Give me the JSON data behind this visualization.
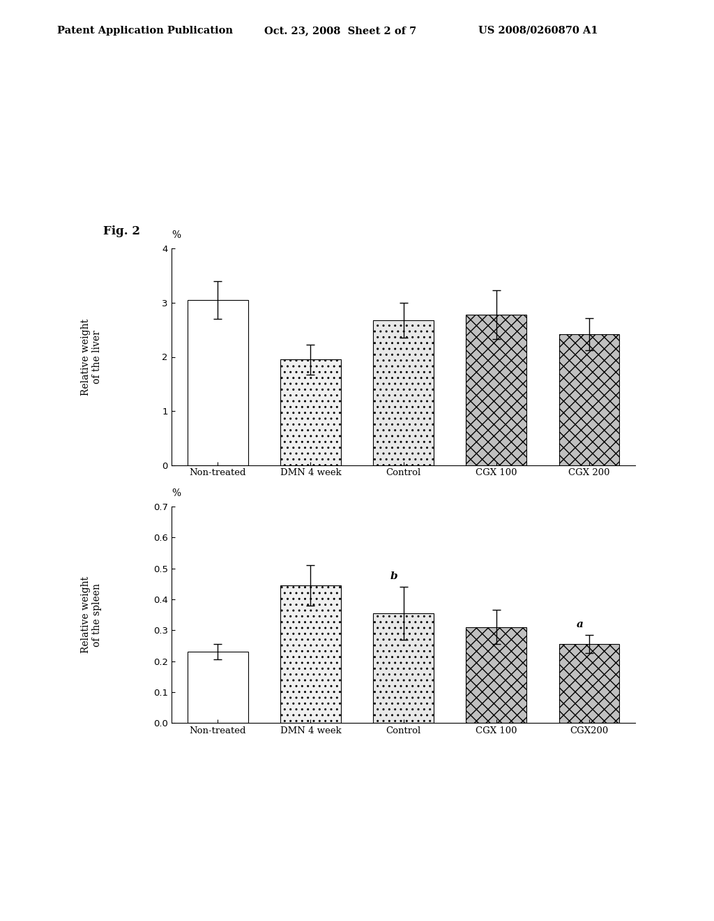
{
  "header_left": "Patent Application Publication",
  "header_center": "Oct. 23, 2008  Sheet 2 of 7",
  "header_right": "US 2008/0260870 A1",
  "fig_label": "Fig. 2",
  "categories_liver": [
    "Non-treated",
    "DMN 4 week",
    "Control",
    "CGX 100",
    "CGX 200"
  ],
  "categories_spleen": [
    "Non-treated",
    "DMN 4 week",
    "Control",
    "CGX 100",
    "CGX200"
  ],
  "liver_values": [
    3.05,
    1.95,
    2.68,
    2.78,
    2.42
  ],
  "liver_errors": [
    0.35,
    0.28,
    0.32,
    0.45,
    0.3
  ],
  "spleen_values": [
    0.23,
    0.445,
    0.355,
    0.31,
    0.255
  ],
  "spleen_errors": [
    0.025,
    0.065,
    0.085,
    0.055,
    0.03
  ],
  "liver_ylabel": "Relative weight\nof the liver",
  "spleen_ylabel": "Relative weight\nof the spleen",
  "liver_ylim": [
    0,
    4
  ],
  "spleen_ylim": [
    0.0,
    0.7
  ],
  "liver_yticks": [
    0,
    1,
    2,
    3,
    4
  ],
  "spleen_yticks": [
    0.0,
    0.1,
    0.2,
    0.3,
    0.4,
    0.5,
    0.6,
    0.7
  ],
  "liver_yunit": "%",
  "spleen_yunit": "%",
  "bar_colors": [
    "#ffffff",
    "#f0f0f0",
    "#e8e8e8",
    "#c0c0c0",
    "#c0c0c0"
  ],
  "bar_hatches": [
    "",
    "..",
    "..",
    "xx",
    "xx"
  ],
  "spleen_annotations_idx": [
    2,
    4
  ],
  "spleen_annotations_labels": [
    "b",
    "a"
  ],
  "background_color": "#ffffff",
  "text_color": "#000000"
}
